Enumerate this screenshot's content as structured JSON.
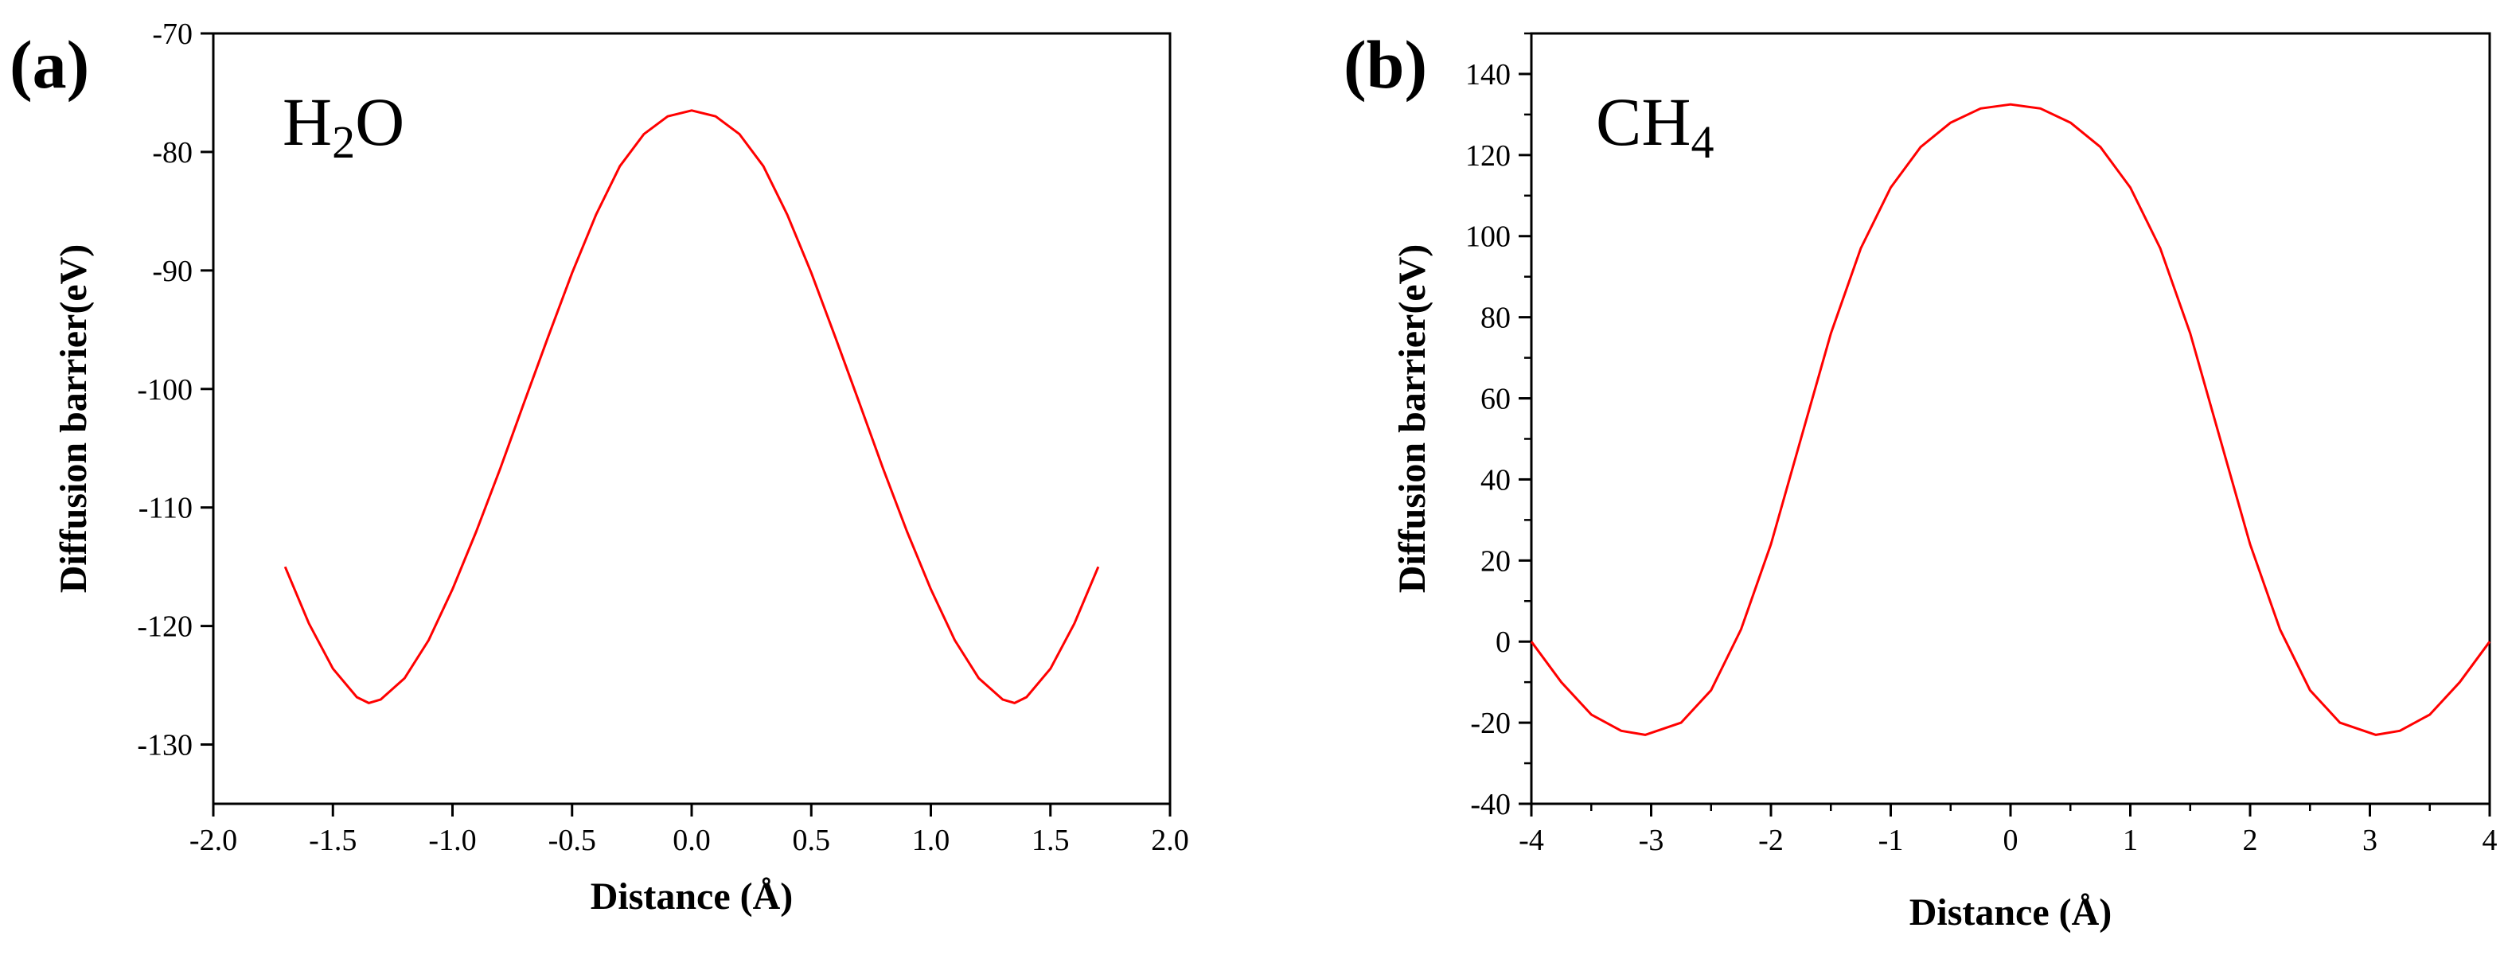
{
  "chart_data": [
    {
      "type": "line",
      "panel_label": "(a)",
      "annotation": {
        "base": "H",
        "subscript": "2",
        "suffix": "O"
      },
      "xlabel": "Distance (Å)",
      "ylabel": "Diffusion barrier(eV)",
      "xlim": [
        -2.0,
        2.0
      ],
      "ylim": [
        -135,
        -70
      ],
      "grid": false,
      "x_ticks": [
        -2.0,
        -1.5,
        -1.0,
        -0.5,
        0.0,
        0.5,
        1.0,
        1.5,
        2.0
      ],
      "x_tick_labels": [
        "-2.0",
        "-1.5",
        "-1.0",
        "-0.5",
        "0.0",
        "0.5",
        "1.0",
        "1.5",
        "2.0"
      ],
      "y_ticks": [
        -130,
        -120,
        -110,
        -100,
        -90,
        -80,
        -70
      ],
      "y_tick_labels": [
        "-130",
        "-120",
        "-110",
        "-100",
        "-90",
        "-80",
        "-70"
      ],
      "series": [
        {
          "name": "H2O",
          "color": "#ff0000",
          "x": [
            -1.7,
            -1.6,
            -1.5,
            -1.4,
            -1.35,
            -1.3,
            -1.2,
            -1.1,
            -1.0,
            -0.9,
            -0.8,
            -0.7,
            -0.6,
            -0.5,
            -0.4,
            -0.3,
            -0.2,
            -0.1,
            0.0,
            0.1,
            0.2,
            0.3,
            0.4,
            0.5,
            0.6,
            0.7,
            0.8,
            0.9,
            1.0,
            1.1,
            1.2,
            1.3,
            1.35,
            1.4,
            1.5,
            1.6,
            1.7
          ],
          "values": [
            -115.0,
            -119.8,
            -123.6,
            -126.0,
            -126.5,
            -126.2,
            -124.4,
            -121.2,
            -116.9,
            -112.0,
            -106.7,
            -101.1,
            -95.6,
            -90.2,
            -85.3,
            -81.2,
            -78.5,
            -77.0,
            -76.5,
            -77.0,
            -78.5,
            -81.2,
            -85.3,
            -90.2,
            -95.6,
            -101.1,
            -106.7,
            -112.0,
            -116.9,
            -121.2,
            -124.4,
            -126.2,
            -126.5,
            -126.0,
            -123.6,
            -119.8,
            -115.0
          ]
        }
      ]
    },
    {
      "type": "line",
      "panel_label": "(b)",
      "annotation": {
        "base": "CH",
        "subscript": "4",
        "suffix": ""
      },
      "xlabel": "Distance (Å)",
      "ylabel": "Diffusion barrier(eV)",
      "xlim": [
        -4,
        4
      ],
      "ylim": [
        -40,
        150
      ],
      "grid": false,
      "x_ticks": [
        -4,
        -3,
        -2,
        -1,
        0,
        1,
        2,
        3,
        4
      ],
      "x_tick_labels": [
        "-4",
        "-3",
        "-2",
        "-1",
        "0",
        "1",
        "2",
        "3",
        "4"
      ],
      "y_ticks": [
        -40,
        -20,
        0,
        20,
        40,
        60,
        80,
        100,
        120,
        140
      ],
      "y_tick_labels": [
        "-40",
        "-20",
        "0",
        "20",
        "40",
        "60",
        "80",
        "100",
        "120",
        "140"
      ],
      "series": [
        {
          "name": "CH4",
          "color": "#ff0000",
          "x": [
            -4.0,
            -3.75,
            -3.5,
            -3.25,
            -3.05,
            -2.75,
            -2.5,
            -2.25,
            -2.0,
            -1.75,
            -1.5,
            -1.25,
            -1.0,
            -0.75,
            -0.5,
            -0.25,
            0.0,
            0.25,
            0.5,
            0.75,
            1.0,
            1.25,
            1.5,
            1.75,
            2.0,
            2.25,
            2.5,
            2.75,
            3.05,
            3.25,
            3.5,
            3.75,
            4.0
          ],
          "values": [
            0.0,
            -10.0,
            -18.0,
            -22.0,
            -23.0,
            -20.0,
            -12.0,
            3.0,
            24.0,
            50.0,
            76.0,
            97.0,
            112.0,
            122.0,
            128.0,
            131.5,
            132.5,
            131.5,
            128.0,
            122.0,
            112.0,
            97.0,
            76.0,
            50.0,
            24.0,
            3.0,
            -12.0,
            -20.0,
            -23.0,
            -22.0,
            -18.0,
            -10.0,
            0.0
          ]
        }
      ]
    }
  ]
}
